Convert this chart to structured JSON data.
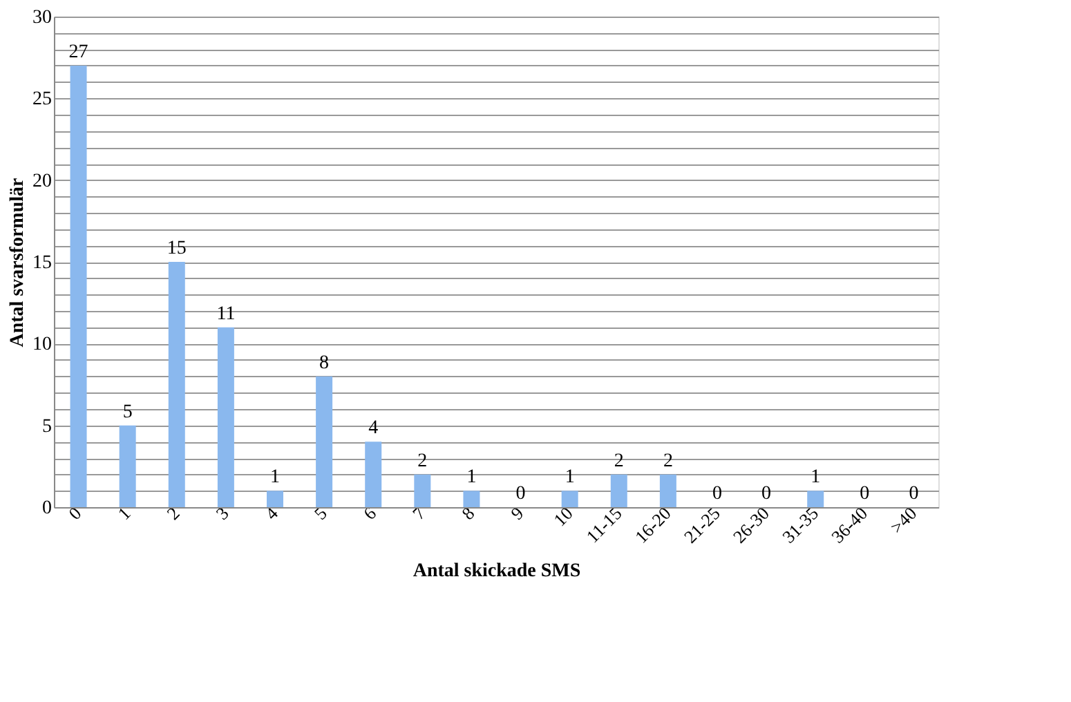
{
  "chart_data": {
    "type": "bar",
    "xlabel": "Antal skickade SMS",
    "ylabel": "Antal svarsformulär",
    "categories": [
      "0",
      "1",
      "2",
      "3",
      "4",
      "5",
      "6",
      "7",
      "8",
      "9",
      "10",
      "11-15",
      "16-20",
      "21-25",
      "26-30",
      "31-35",
      "36-40",
      ">40"
    ],
    "values": [
      27,
      5,
      15,
      11,
      1,
      8,
      4,
      2,
      1,
      0,
      1,
      2,
      2,
      0,
      0,
      1,
      0,
      0
    ],
    "color": "#8ab8ee",
    "ylim": [
      0,
      30
    ],
    "yticks": [
      0,
      {
        "value": 1,
        "label": null
      },
      {
        "value": 2,
        "label": null
      },
      {
        "value": 3,
        "label": null
      },
      {
        "value": 4,
        "label": null
      },
      5,
      {
        "value": 6,
        "label": null
      },
      {
        "value": 7,
        "label": null
      },
      {
        "value": 8,
        "label": null
      },
      {
        "value": 9,
        "label": null
      },
      10,
      {
        "value": 11,
        "label": null
      },
      {
        "value": 12,
        "label": null
      },
      {
        "value": 13,
        "label": null
      },
      {
        "value": 14,
        "label": null
      },
      15,
      {
        "value": 16,
        "label": null
      },
      {
        "value": 17,
        "label": null
      },
      {
        "value": 18,
        "label": null
      },
      {
        "value": 19,
        "label": null
      },
      20,
      {
        "value": 21,
        "label": null
      },
      {
        "value": 22,
        "label": null
      },
      {
        "value": 23,
        "label": null
      },
      {
        "value": 24,
        "label": null
      },
      25,
      {
        "value": 26,
        "label": null
      },
      {
        "value": 27,
        "label": null
      },
      {
        "value": 28,
        "label": null
      },
      {
        "value": 29,
        "label": null
      },
      30
    ],
    "grid": "y",
    "data_labels": true
  }
}
